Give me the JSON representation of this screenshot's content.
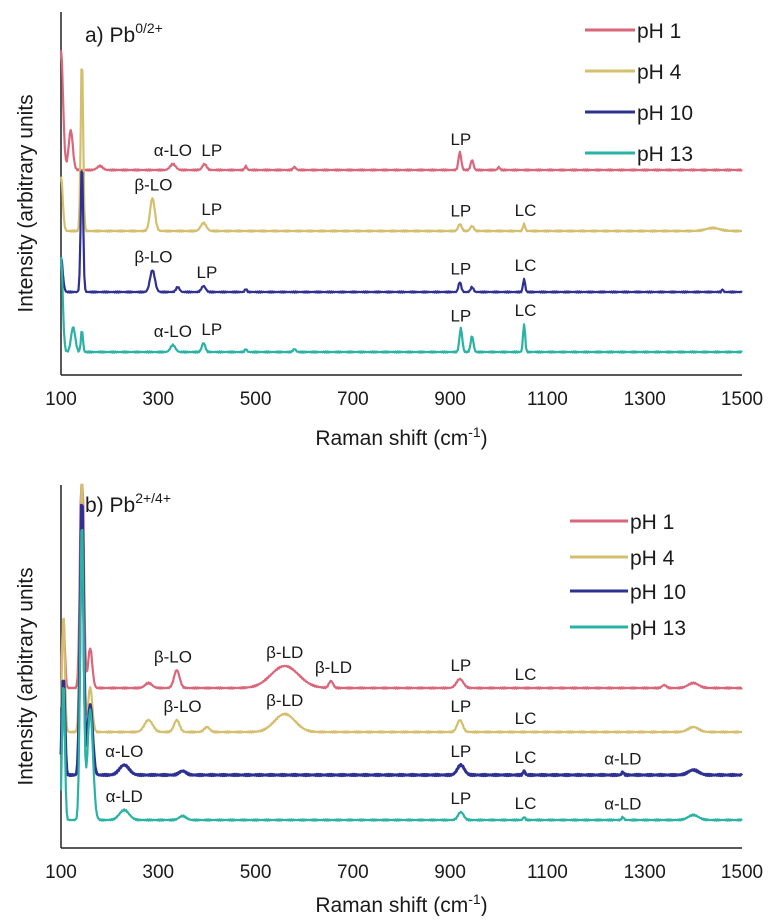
{
  "chart_data": [
    {
      "type": "line",
      "title": "a) Pb",
      "title_sup": "0/2+",
      "xlabel": "Raman shift (cm",
      "xlabel_sup": "-1",
      "xlabel_end": ")",
      "ylabel": "Intensity (arbitrary units",
      "xlim": [
        100,
        1500
      ],
      "xticks": [
        "100",
        "300",
        "500",
        "700",
        "900",
        "1100",
        "1300",
        "1500"
      ],
      "legend": "top-right",
      "series": [
        {
          "name": "pH 1",
          "color": "#d9667a",
          "baseline": 170,
          "peaks": [
            [
              100,
              -120,
              6
            ],
            [
              120,
              -40,
              6
            ],
            [
              180,
              -4,
              8
            ],
            [
              330,
              -6,
              8
            ],
            [
              395,
              -6,
              6
            ],
            [
              480,
              -4,
              3
            ],
            [
              580,
              -3,
              4
            ],
            [
              920,
              -18,
              4
            ],
            [
              945,
              -10,
              4
            ],
            [
              1000,
              -3,
              3
            ]
          ]
        },
        {
          "name": "pH 4",
          "color": "#d4bf6e",
          "baseline": 231,
          "peaks": [
            [
              100,
              -55,
              5
            ],
            [
              143,
              -175,
              3.5
            ],
            [
              288,
              -33,
              7
            ],
            [
              393,
              -8,
              8
            ],
            [
              920,
              -7,
              5
            ],
            [
              945,
              -5,
              5
            ],
            [
              1052,
              -7,
              3
            ],
            [
              1440,
              -3,
              20
            ]
          ]
        },
        {
          "name": "pH 10",
          "color": "#2e3192",
          "baseline": 292,
          "peaks": [
            [
              100,
              -35,
              5
            ],
            [
              143,
              -130,
              3.5
            ],
            [
              288,
              -22,
              7
            ],
            [
              340,
              -5,
              5
            ],
            [
              393,
              -6,
              6
            ],
            [
              480,
              -3,
              3
            ],
            [
              920,
              -10,
              4
            ],
            [
              945,
              -5,
              4
            ],
            [
              1052,
              -13,
              3
            ],
            [
              1460,
              -3,
              2
            ]
          ]
        },
        {
          "name": "pH 13",
          "color": "#2ab2a4",
          "baseline": 352,
          "peaks": [
            [
              100,
              -95,
              5
            ],
            [
              125,
              -25,
              6
            ],
            [
              143,
              -22,
              3
            ],
            [
              330,
              -7,
              7
            ],
            [
              393,
              -9,
              5
            ],
            [
              480,
              -3,
              3
            ],
            [
              580,
              -3,
              4
            ],
            [
              922,
              -24,
              4
            ],
            [
              945,
              -16,
              4
            ],
            [
              1052,
              -28,
              3
            ]
          ]
        }
      ],
      "annotations": [
        {
          "text": "α-LO",
          "x": 330,
          "row": 0
        },
        {
          "text": "LP",
          "x": 410,
          "row": 0
        },
        {
          "text": "LP",
          "x": 922,
          "row": 0
        },
        {
          "text": "β-LO",
          "x": 290,
          "row": 1
        },
        {
          "text": "LP",
          "x": 410,
          "row": 1
        },
        {
          "text": "LP",
          "x": 922,
          "row": 1
        },
        {
          "text": "LC",
          "x": 1055,
          "row": 1
        },
        {
          "text": "β-LO",
          "x": 290,
          "row": 2
        },
        {
          "text": "LP",
          "x": 400,
          "row": 2
        },
        {
          "text": "LP",
          "x": 922,
          "row": 2
        },
        {
          "text": "LC",
          "x": 1055,
          "row": 2
        },
        {
          "text": "α-LO",
          "x": 330,
          "row": 3
        },
        {
          "text": "LP",
          "x": 410,
          "row": 3
        },
        {
          "text": "LP",
          "x": 922,
          "row": 3
        },
        {
          "text": "LC",
          "x": 1055,
          "row": 3
        }
      ]
    },
    {
      "type": "line",
      "title": "b) Pb",
      "title_sup": "2+/4+",
      "xlabel": "Raman shift (cm",
      "xlabel_sup": "-1",
      "xlabel_end": ")",
      "ylabel": "Intensity (arbitrary units",
      "xlim": [
        100,
        1500
      ],
      "xticks": [
        "100",
        "300",
        "500",
        "700",
        "900",
        "1100",
        "1300",
        "1500"
      ],
      "legend": "top-right",
      "series": [
        {
          "name": "pH 1",
          "color": "#d9667a",
          "baseline": 688,
          "peaks": [
            [
              105,
              -70,
              4
            ],
            [
              143,
              -260,
              5
            ],
            [
              160,
              -40,
              6
            ],
            [
              280,
              -5,
              10
            ],
            [
              338,
              -18,
              8
            ],
            [
              560,
              -22,
              40
            ],
            [
              655,
              -7,
              6
            ],
            [
              920,
              -9,
              10
            ],
            [
              1340,
              -3,
              6
            ],
            [
              1400,
              -5,
              15
            ]
          ]
        },
        {
          "name": "pH 4",
          "color": "#d4bf6e",
          "baseline": 732,
          "peaks": [
            [
              105,
              -120,
              4
            ],
            [
              143,
              -260,
              5
            ],
            [
              160,
              -45,
              6
            ],
            [
              280,
              -12,
              12
            ],
            [
              338,
              -12,
              8
            ],
            [
              400,
              -5,
              8
            ],
            [
              560,
              -18,
              30
            ],
            [
              920,
              -12,
              8
            ],
            [
              1400,
              -5,
              15
            ]
          ]
        },
        {
          "name": "pH 10",
          "color": "#2e3192",
          "baseline": 775,
          "peaks": [
            [
              105,
              -100,
              4
            ],
            [
              143,
              -280,
              5
            ],
            [
              160,
              -70,
              7
            ],
            [
              230,
              -10,
              14
            ],
            [
              350,
              -4,
              10
            ],
            [
              922,
              -10,
              10
            ],
            [
              1052,
              -4,
              3
            ],
            [
              1255,
              -3,
              3
            ],
            [
              1400,
              -5,
              15
            ]
          ]
        },
        {
          "name": "pH 13",
          "color": "#2ab2a4",
          "baseline": 820,
          "peaks": [
            [
              105,
              -140,
              4
            ],
            [
              143,
              -300,
              5
            ],
            [
              160,
              -110,
              8
            ],
            [
              230,
              -10,
              14
            ],
            [
              350,
              -4,
              10
            ],
            [
              922,
              -8,
              8
            ],
            [
              1052,
              -3,
              3
            ],
            [
              1255,
              -3,
              3
            ],
            [
              1400,
              -5,
              15
            ]
          ]
        }
      ],
      "annotations": [
        {
          "text": "β-LO",
          "x": 330,
          "row": 0
        },
        {
          "text": "β-LD",
          "x": 560,
          "row": 0
        },
        {
          "text": "β-LD",
          "x": 660,
          "row": 0
        },
        {
          "text": "LP",
          "x": 922,
          "row": 0
        },
        {
          "text": "LC",
          "x": 1055,
          "row": 0
        },
        {
          "text": "β-LO",
          "x": 350,
          "row": 1
        },
        {
          "text": "β-LD",
          "x": 560,
          "row": 1
        },
        {
          "text": "LP",
          "x": 922,
          "row": 1
        },
        {
          "text": "LC",
          "x": 1055,
          "row": 1
        },
        {
          "text": "α-LO",
          "x": 230,
          "row": 2
        },
        {
          "text": "LP",
          "x": 922,
          "row": 2
        },
        {
          "text": "LC",
          "x": 1055,
          "row": 2
        },
        {
          "text": "α-LD",
          "x": 1255,
          "row": 2
        },
        {
          "text": "α-LD",
          "x": 230,
          "row": 3
        },
        {
          "text": "LP",
          "x": 922,
          "row": 3
        },
        {
          "text": "LC",
          "x": 1055,
          "row": 3
        },
        {
          "text": "α-LD",
          "x": 1255,
          "row": 3
        }
      ]
    }
  ]
}
